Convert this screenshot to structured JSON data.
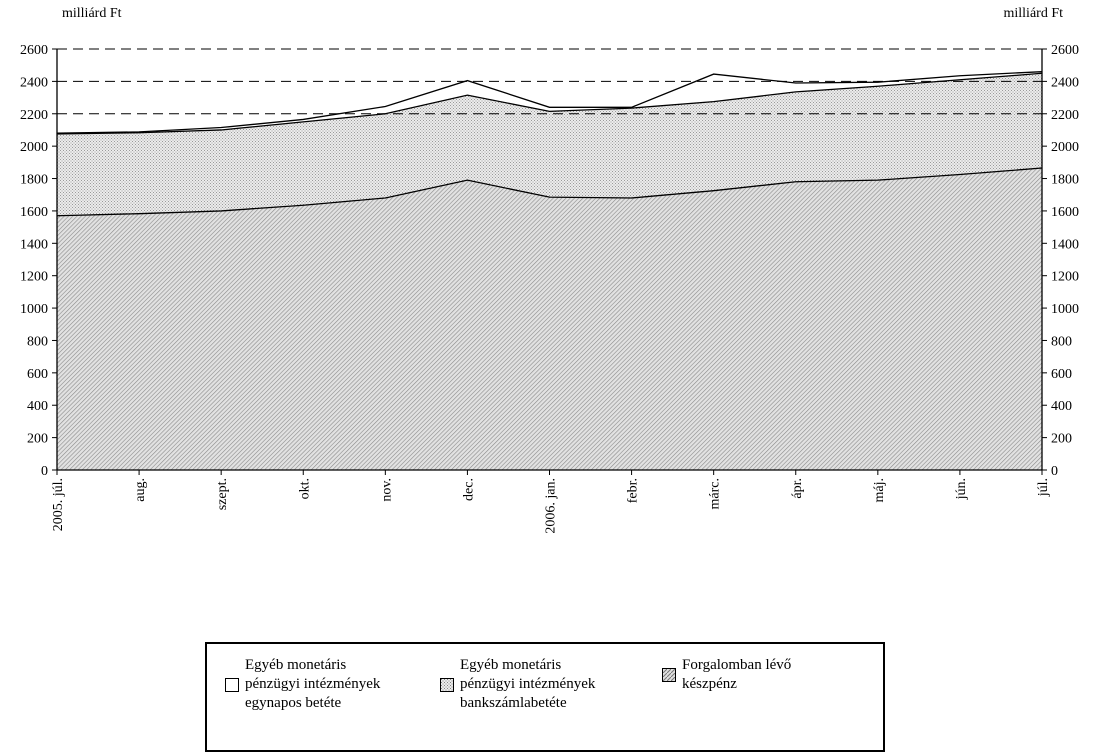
{
  "chart_data": {
    "type": "area",
    "stacked": true,
    "ylabel_left": "milliárd Ft",
    "ylabel_right": "milliárd Ft",
    "ylim": [
      0,
      2600
    ],
    "yticks": [
      0,
      200,
      400,
      600,
      800,
      1000,
      1200,
      1400,
      1600,
      1800,
      2000,
      2200,
      2400,
      2600
    ],
    "gridlines_dashed": [
      2200,
      2400,
      2600
    ],
    "categories": [
      "2005. júl.",
      "aug.",
      "szept.",
      "okt.",
      "nov.",
      "dec.",
      "2006. jan.",
      "febr.",
      "márc.",
      "ápr.",
      "máj.",
      "jún.",
      "júl."
    ],
    "series": [
      {
        "name": "Forgalomban lévő készpénz",
        "fill": "#cfcfcf",
        "pattern": "diag",
        "values": [
          1570,
          1583,
          1600,
          1635,
          1680,
          1790,
          1685,
          1680,
          1725,
          1780,
          1790,
          1825,
          1865
        ]
      },
      {
        "name": "Egyéb monetáris pénzügyi intézmények bankszámlabetéte",
        "fill": "#dcdcdc",
        "pattern": "dots",
        "values": [
          505,
          500,
          500,
          515,
          520,
          525,
          530,
          555,
          550,
          555,
          580,
          585,
          585
        ]
      },
      {
        "name": "Egyéb monetáris pénzügyi intézmények egynapos betéte",
        "fill": "#ffffff",
        "pattern": "none",
        "values": [
          5,
          5,
          15,
          15,
          45,
          90,
          25,
          5,
          170,
          55,
          25,
          25,
          10
        ]
      }
    ]
  },
  "legend": {
    "items": [
      {
        "label": "Egyéb monetáris\npénzügyi intézmények\negynapos betéte",
        "swatch": "white"
      },
      {
        "label": "Egyéb monetáris\npénzügyi intézmények\nbankszámlabetéte",
        "swatch": "dots"
      },
      {
        "label": "Forgalomban lévő\nkészpénz",
        "swatch": "diag"
      }
    ]
  }
}
